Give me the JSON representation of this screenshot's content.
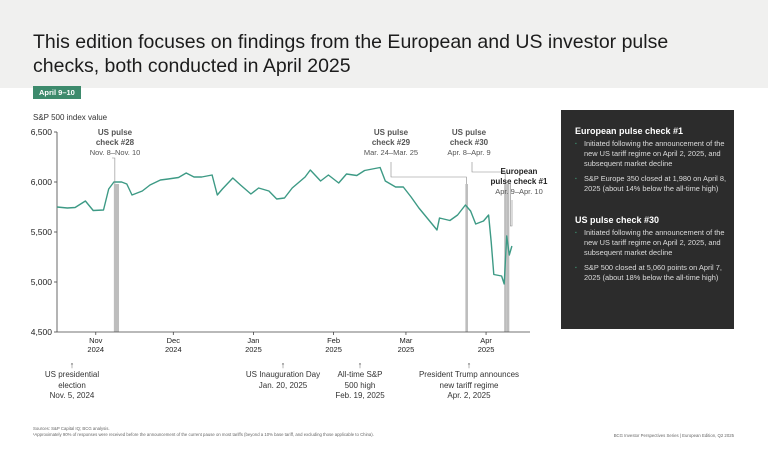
{
  "header": {
    "title": "This edition focuses on findings from the European and US investor pulse checks, both conducted in April 2025"
  },
  "badge": "April 9–10",
  "y_axis_title": "S&P 500 index value",
  "chart_data": {
    "type": "line",
    "title": "",
    "ylabel": "S&P 500 index value",
    "ylim": [
      4500,
      6500
    ],
    "yticks": [
      "6,500",
      "6,000",
      "5,500",
      "5,000",
      "4,500"
    ],
    "ytick_values": [
      6500,
      6000,
      5500,
      5000,
      4500
    ],
    "xlim": [
      "2024-10-17",
      "2025-04-18"
    ],
    "xticks": [
      {
        "date": "2024-11-01",
        "line1": "Nov",
        "line2": "2024"
      },
      {
        "date": "2024-12-01",
        "line1": "Dec",
        "line2": "2024"
      },
      {
        "date": "2025-01-01",
        "line1": "Jan",
        "line2": "2025"
      },
      {
        "date": "2025-02-01",
        "line1": "Feb",
        "line2": "2025"
      },
      {
        "date": "2025-03-01",
        "line1": "Mar",
        "line2": "2025"
      },
      {
        "date": "2025-04-01",
        "line1": "Apr",
        "line2": "2025"
      }
    ],
    "series": [
      {
        "color": "#3d9a85",
        "points": [
          [
            "2024-10-17",
            5750
          ],
          [
            "2024-10-21",
            5740
          ],
          [
            "2024-10-24",
            5745
          ],
          [
            "2024-10-28",
            5810
          ],
          [
            "2024-10-31",
            5715
          ],
          [
            "2024-11-04",
            5720
          ],
          [
            "2024-11-06",
            5930
          ],
          [
            "2024-11-08",
            6000
          ],
          [
            "2024-11-11",
            6000
          ],
          [
            "2024-11-13",
            5980
          ],
          [
            "2024-11-15",
            5870
          ],
          [
            "2024-11-19",
            5910
          ],
          [
            "2024-11-22",
            5970
          ],
          [
            "2024-11-26",
            6020
          ],
          [
            "2024-11-29",
            6030
          ],
          [
            "2024-12-03",
            6045
          ],
          [
            "2024-12-06",
            6090
          ],
          [
            "2024-12-09",
            6050
          ],
          [
            "2024-12-12",
            6050
          ],
          [
            "2024-12-16",
            6070
          ],
          [
            "2024-12-18",
            5870
          ],
          [
            "2024-12-20",
            5930
          ],
          [
            "2024-12-24",
            6040
          ],
          [
            "2024-12-27",
            5970
          ],
          [
            "2024-12-31",
            5880
          ],
          [
            "2025-01-03",
            5940
          ],
          [
            "2025-01-07",
            5910
          ],
          [
            "2025-01-10",
            5830
          ],
          [
            "2025-01-13",
            5840
          ],
          [
            "2025-01-16",
            5940
          ],
          [
            "2025-01-21",
            6050
          ],
          [
            "2025-01-23",
            6120
          ],
          [
            "2025-01-27",
            6010
          ],
          [
            "2025-01-30",
            6070
          ],
          [
            "2025-02-03",
            5990
          ],
          [
            "2025-02-06",
            6080
          ],
          [
            "2025-02-10",
            6065
          ],
          [
            "2025-02-13",
            6115
          ],
          [
            "2025-02-19",
            6145
          ],
          [
            "2025-02-21",
            6010
          ],
          [
            "2025-02-25",
            5950
          ],
          [
            "2025-02-28",
            5950
          ],
          [
            "2025-03-03",
            5850
          ],
          [
            "2025-03-06",
            5740
          ],
          [
            "2025-03-10",
            5615
          ],
          [
            "2025-03-13",
            5520
          ],
          [
            "2025-03-14",
            5640
          ],
          [
            "2025-03-18",
            5615
          ],
          [
            "2025-03-21",
            5670
          ],
          [
            "2025-03-24",
            5770
          ],
          [
            "2025-03-26",
            5710
          ],
          [
            "2025-03-28",
            5580
          ],
          [
            "2025-03-31",
            5610
          ],
          [
            "2025-04-02",
            5670
          ],
          [
            "2025-04-03",
            5400
          ],
          [
            "2025-04-04",
            5075
          ],
          [
            "2025-04-07",
            5060
          ],
          [
            "2025-04-08",
            4980
          ],
          [
            "2025-04-09",
            5460
          ],
          [
            "2025-04-10",
            5270
          ],
          [
            "2025-04-11",
            5360
          ]
        ]
      }
    ],
    "highlight_bands": [
      {
        "from": "2024-11-08",
        "to": "2024-11-10"
      },
      {
        "from": "2025-03-24",
        "to": "2025-03-25"
      },
      {
        "from": "2025-04-08",
        "to": "2025-04-09"
      },
      {
        "from": "2025-04-09",
        "to": "2025-04-10"
      }
    ],
    "callouts": [
      {
        "title": "US pulse check #28",
        "title_lines": [
          "US pulse",
          "check #28"
        ],
        "dates": "Nov. 8–Nov. 10"
      },
      {
        "title": "US pulse check #29",
        "title_lines": [
          "US pulse",
          "check #29"
        ],
        "dates": "Mar. 24–Mar. 25"
      },
      {
        "title": "US pulse check #30",
        "title_lines": [
          "US pulse",
          "check #30"
        ],
        "dates": "Apr. 8–Apr. 9"
      },
      {
        "title": "European pulse check #1",
        "title_lines": [
          "European",
          "pulse check #1"
        ],
        "dates": "Apr. 9–Apr. 10"
      }
    ],
    "events": [
      {
        "lines": [
          "US presidential",
          "election",
          "Nov. 5, 2024"
        ]
      },
      {
        "lines": [
          "US Inauguration Day",
          "Jan. 20, 2025"
        ]
      },
      {
        "lines": [
          "All-time S&P",
          "500 high",
          "Feb. 19, 2025"
        ]
      },
      {
        "lines": [
          "President Trump announces",
          "new tariff regime",
          "Apr. 2, 2025"
        ]
      }
    ]
  },
  "panel": {
    "sections": [
      {
        "heading": "European pulse check #1",
        "bullets": [
          "Initiated following the announcement of the new US tariff regime on April 2, 2025, and subsequent market decline",
          "S&P Europe 350 closed at 1,980 on April 8, 2025 (about 14% below the all-time high)"
        ]
      },
      {
        "heading": "US pulse check #30",
        "bullets": [
          "Initiated following the announcement of the new US tariff regime on April 2, 2025, and subsequent market decline",
          "S&P 500 closed at 5,060 points on April 7, 2025 (about 18% below the all-time high)"
        ]
      }
    ]
  },
  "footer": {
    "sources": "Sources: S&P Capital IQ; BCG analysis.",
    "note": "¹Approximately 90% of responses were received before the announcement of the current pause on most tariffs (beyond a 10% base tariff, and excluding those applicable to China).",
    "right": "BCG Investor Perspectives Series | European Edition, Q2 2025"
  }
}
